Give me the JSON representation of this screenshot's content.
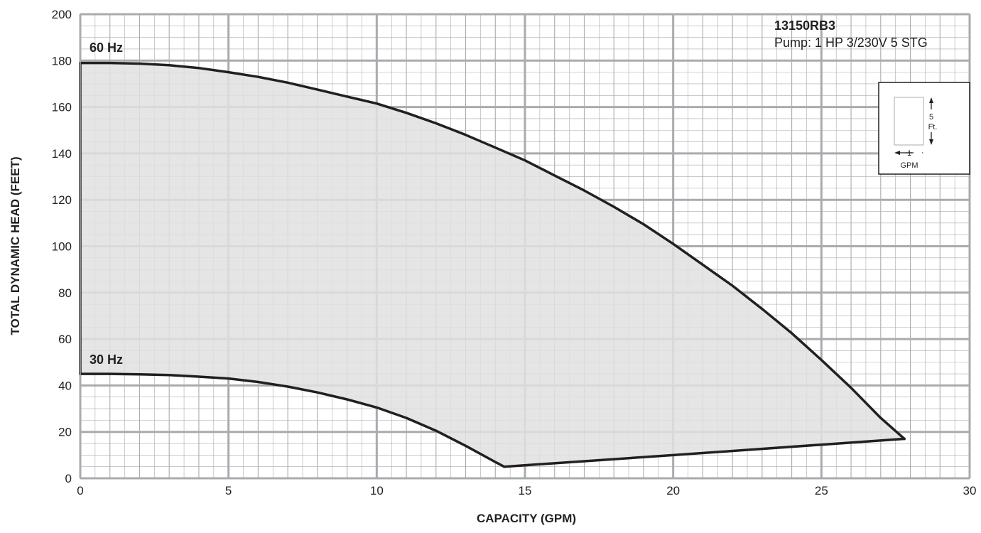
{
  "chart_data": {
    "type": "area",
    "title": "13150RB3",
    "subtitle": "Pump: 1 HP 3/230V 5 STG",
    "xlabel": "CAPACITY (GPM)",
    "ylabel": "TOTAL DYNAMIC HEAD (FEET)",
    "xlim": [
      0,
      30
    ],
    "ylim": [
      0,
      200
    ],
    "x_ticks": [
      "0",
      "5",
      "10",
      "15",
      "20",
      "25",
      "30"
    ],
    "y_ticks": [
      "0",
      "20",
      "40",
      "60",
      "80",
      "100",
      "120",
      "140",
      "160",
      "180",
      "200"
    ],
    "grid": true,
    "fill_color": "#e1e1e2",
    "line_color": "#231f20",
    "grid_color": "#a9abae",
    "series": [
      {
        "name": "60 Hz",
        "x": [
          0,
          1,
          2,
          3,
          4,
          5,
          6,
          7,
          8,
          9,
          10,
          11,
          12,
          13,
          14,
          15,
          16,
          17,
          18,
          19,
          20,
          21,
          22,
          23,
          24,
          25,
          26,
          27,
          27.8
        ],
        "y": [
          179,
          179,
          178.7,
          178,
          176.8,
          175,
          173,
          170.5,
          167.5,
          164.5,
          161.5,
          157.5,
          153,
          148,
          142.5,
          137,
          130.5,
          124,
          117,
          109.5,
          101,
          92,
          83,
          73,
          62.5,
          51,
          39,
          26,
          17
        ]
      },
      {
        "name": "30 Hz",
        "x": [
          0,
          1,
          2,
          3,
          4,
          5,
          6,
          7,
          8,
          9,
          10,
          11,
          12,
          13,
          14,
          14.3
        ],
        "y": [
          45,
          45,
          44.8,
          44.5,
          43.8,
          43,
          41.5,
          39.5,
          37,
          34,
          30.5,
          26,
          20.5,
          14,
          7,
          5
        ]
      },
      {
        "name": "",
        "x": [
          14.3,
          20,
          25,
          27.8
        ],
        "y": [
          5,
          10,
          14.5,
          17
        ]
      }
    ],
    "scale_box": {
      "vertical_label_1": "5",
      "vertical_label_2": "Ft.",
      "horizontal_label_1": "1",
      "horizontal_label_2": "GPM"
    }
  }
}
